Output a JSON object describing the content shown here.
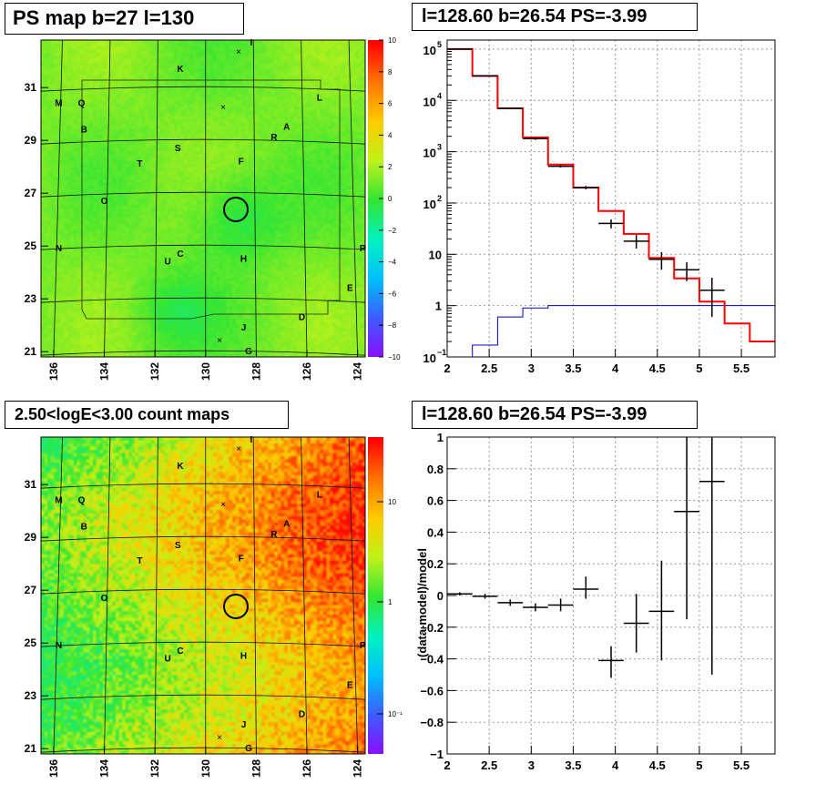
{
  "panels": {
    "tl": {
      "title": "PS map b=27 l=130",
      "xticks": [
        "136",
        "134",
        "132",
        "130",
        "128",
        "126",
        "124"
      ],
      "yticks": [
        "31",
        "29",
        "27",
        "25",
        "23",
        "21"
      ],
      "colorbar_ticks": [
        "10",
        "8",
        "6",
        "4",
        "2",
        "0",
        "−2",
        "−4",
        "−6",
        "−8",
        "−10"
      ]
    },
    "tr": {
      "title": "l=128.60 b=26.54 PS=-3.99",
      "xticks": [
        "2",
        "2.5",
        "3",
        "3.5",
        "4",
        "4.5",
        "5",
        "5.5"
      ],
      "ytick_base": "10",
      "ytick_exps": [
        "5",
        "4",
        "3",
        "2",
        "",
        " ",
        "−1"
      ],
      "ytick_plain": [
        "1",
        "10"
      ]
    },
    "bl": {
      "title": "2.50<logE<3.00 count maps",
      "xticks": [
        "136",
        "134",
        "132",
        "130",
        "128",
        "126",
        "124"
      ],
      "yticks": [
        "31",
        "29",
        "27",
        "25",
        "23",
        "21"
      ],
      "colorbar_ticks": [
        "10",
        "1",
        "10⁻¹"
      ]
    },
    "br": {
      "title": "l=128.60 b=26.54 PS=-3.99",
      "ylabel": "(data-model)/model",
      "xticks": [
        "2",
        "2.5",
        "3",
        "3.5",
        "4",
        "4.5",
        "5",
        "5.5"
      ],
      "yticks": [
        "1",
        "0.8",
        "0.6",
        "0.4",
        "0.2",
        "0",
        "−0.2",
        "−0.4",
        "−0.6",
        "−0.8",
        "−1"
      ]
    }
  },
  "map_labels": [
    "K",
    "I",
    "M",
    "Q",
    "L",
    "B",
    "A",
    "R",
    "S",
    "F",
    "T",
    "O",
    "N",
    "U",
    "C",
    "H",
    "P",
    "E",
    "D",
    "J",
    "G"
  ],
  "colors": {
    "model_red": "#ff0000",
    "bkg_blue": "#0000cc",
    "map_green": "#33dd33"
  },
  "chart_data": [
    {
      "type": "heatmap",
      "title": "PS map b=27 l=130",
      "x_range": [
        136.5,
        123.7
      ],
      "y_range": [
        20.8,
        32.8
      ],
      "z_range": [
        -10,
        10
      ],
      "source_position": {
        "l": 128.6,
        "b": 26.54
      },
      "sources": [
        {
          "name": "K",
          "l": 131.0,
          "b": 31.6
        },
        {
          "name": "I",
          "l": 128.2,
          "b": 32.6
        },
        {
          "name": "M",
          "l": 135.8,
          "b": 30.3
        },
        {
          "name": "Q",
          "l": 134.9,
          "b": 30.3
        },
        {
          "name": "L",
          "l": 125.5,
          "b": 30.5
        },
        {
          "name": "B",
          "l": 134.8,
          "b": 29.3
        },
        {
          "name": "A",
          "l": 126.8,
          "b": 29.4
        },
        {
          "name": "R",
          "l": 127.3,
          "b": 29.0
        },
        {
          "name": "S",
          "l": 131.1,
          "b": 28.6
        },
        {
          "name": "F",
          "l": 128.6,
          "b": 28.1
        },
        {
          "name": "T",
          "l": 132.6,
          "b": 28.0
        },
        {
          "name": "O",
          "l": 134.0,
          "b": 26.6
        },
        {
          "name": "N",
          "l": 135.8,
          "b": 24.8
        },
        {
          "name": "U",
          "l": 131.5,
          "b": 24.3
        },
        {
          "name": "C",
          "l": 131.0,
          "b": 24.6
        },
        {
          "name": "H",
          "l": 128.5,
          "b": 24.4
        },
        {
          "name": "P",
          "l": 123.8,
          "b": 24.8
        },
        {
          "name": "E",
          "l": 124.3,
          "b": 23.3
        },
        {
          "name": "D",
          "l": 126.2,
          "b": 22.2
        },
        {
          "name": "J",
          "l": 128.5,
          "b": 21.8
        },
        {
          "name": "G",
          "l": 128.3,
          "b": 20.9
        }
      ]
    },
    {
      "type": "line",
      "title": "l=128.60 b=26.54 PS=-3.99",
      "y_scale": "log",
      "xlim": [
        2,
        5.9
      ],
      "ylim": [
        0.1,
        150000
      ],
      "series": [
        {
          "kind": "model_histogram",
          "color": "#ff0000",
          "edges": [
            2.0,
            2.3,
            2.6,
            2.9,
            3.2,
            3.5,
            3.8,
            4.1,
            4.4,
            4.7,
            5.0,
            5.3,
            5.6,
            5.9
          ],
          "values": [
            100000,
            30000,
            7000,
            1900,
            560,
            200,
            70,
            25,
            8.5,
            3.4,
            1.2,
            0.45,
            0.2
          ]
        },
        {
          "kind": "background_histogram",
          "color": "#0000cc",
          "edges": [
            2.3,
            2.6,
            2.9,
            3.2,
            3.5,
            3.8,
            4.1,
            4.4,
            4.7,
            5.0,
            5.3,
            5.6,
            5.9
          ],
          "values": [
            0.17,
            0.6,
            0.9,
            1.0,
            1.0,
            1.0,
            1.0,
            1.0,
            1.0,
            1.0,
            1.0,
            1.0
          ]
        },
        {
          "kind": "data",
          "x": [
            2.15,
            2.45,
            2.75,
            3.05,
            3.35,
            3.65,
            3.95,
            4.25,
            4.55,
            4.85,
            5.15
          ],
          "xerr": 0.15,
          "y": [
            100000,
            30000,
            7000,
            1800,
            520,
            200,
            40,
            18,
            8,
            5,
            2
          ],
          "ylo": [
            99000,
            29500,
            6800,
            1700,
            490,
            185,
            32,
            13,
            5,
            3,
            0.6
          ],
          "yhi": [
            101000,
            30500,
            7200,
            1900,
            550,
            215,
            48,
            24,
            11,
            7,
            3.5
          ]
        }
      ]
    },
    {
      "type": "heatmap",
      "title": "2.50<logE<3.00 count maps",
      "x_range": [
        136.5,
        123.7
      ],
      "y_range": [
        20.8,
        32.8
      ],
      "z_scale": "log",
      "z_range": [
        0.05,
        40
      ]
    },
    {
      "type": "scatter",
      "title": "l=128.60 b=26.54 PS=-3.99",
      "ylabel": "(data-model)/model",
      "xlim": [
        2,
        5.9
      ],
      "ylim": [
        -1,
        1
      ],
      "x": [
        2.15,
        2.45,
        2.75,
        3.05,
        3.35,
        3.65,
        3.95,
        4.25,
        4.55,
        4.85,
        5.15
      ],
      "y": [
        0.01,
        -0.005,
        -0.045,
        -0.075,
        -0.06,
        0.04,
        -0.41,
        -0.175,
        -0.1,
        0.53,
        0.72
      ],
      "ylo": [
        0.0,
        -0.02,
        -0.065,
        -0.1,
        -0.1,
        -0.02,
        -0.52,
        -0.36,
        -0.41,
        -0.15,
        -0.5
      ],
      "yhi": [
        0.02,
        0.01,
        -0.025,
        -0.05,
        -0.02,
        0.12,
        -0.32,
        0.01,
        0.22,
        1.0,
        1.0
      ],
      "xerr": 0.15
    }
  ]
}
